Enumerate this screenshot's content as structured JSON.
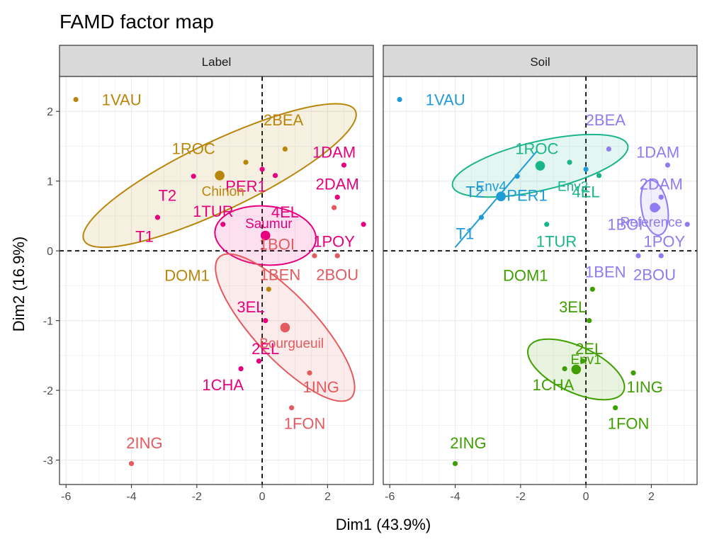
{
  "chart_data": {
    "type": "scatter",
    "title": "FAMD factor map",
    "xlabel": "Dim1 (43.9%)",
    "ylabel": "Dim2 (16.9%)",
    "xlim": [
      -6.2,
      3.4
    ],
    "ylim": [
      -3.35,
      2.5
    ],
    "xticks": [
      -6,
      -4,
      -2,
      0,
      2
    ],
    "yticks": [
      -3,
      -2,
      -1,
      0,
      1,
      2
    ],
    "grid": true,
    "reference_lines": {
      "x": 0,
      "y": 0,
      "style": "dashed"
    },
    "individuals": [
      {
        "name": "1VAU",
        "x": -5.7,
        "y": 2.17,
        "label": "Chinon",
        "soil": "Env4"
      },
      {
        "name": "1ROC",
        "x": -0.5,
        "y": 1.27,
        "label": "Chinon",
        "soil": "Env2"
      },
      {
        "name": "2BEA",
        "x": 0.7,
        "y": 1.46,
        "label": "Chinon",
        "soil": "Reference"
      },
      {
        "name": "DOM1",
        "x": 0.2,
        "y": -0.55,
        "label": "Chinon",
        "soil": "Env1"
      },
      {
        "name": "T1",
        "x": -3.2,
        "y": 0.48,
        "label": "Saumur",
        "soil": "Env4"
      },
      {
        "name": "T2",
        "x": -2.1,
        "y": 1.07,
        "label": "Saumur",
        "soil": "Env4"
      },
      {
        "name": "PER1",
        "x": 0.0,
        "y": 1.17,
        "label": "Saumur",
        "soil": "Env4"
      },
      {
        "name": "4EL",
        "x": 0.4,
        "y": 1.08,
        "label": "Saumur",
        "soil": "Env2"
      },
      {
        "name": "1DAM",
        "x": 2.5,
        "y": 1.23,
        "label": "Saumur",
        "soil": "Reference"
      },
      {
        "name": "2DAM",
        "x": 2.3,
        "y": 0.77,
        "label": "Saumur",
        "soil": "Reference"
      },
      {
        "name": "1TUR",
        "x": -1.2,
        "y": 0.38,
        "label": "Saumur",
        "soil": "Env2"
      },
      {
        "name": "1POY",
        "x": 3.1,
        "y": 0.38,
        "label": "Saumur",
        "soil": "Reference"
      },
      {
        "name": "3EL",
        "x": 0.1,
        "y": -1.0,
        "label": "Saumur",
        "soil": "Env1"
      },
      {
        "name": "2EL",
        "x": -0.1,
        "y": -1.58,
        "label": "Saumur",
        "soil": "Env1"
      },
      {
        "name": "1CHA",
        "x": -0.65,
        "y": -1.69,
        "label": "Saumur",
        "soil": "Env1"
      },
      {
        "name": "1BOI",
        "x": 2.2,
        "y": 0.62,
        "label": "Bourgueuil",
        "soil": "Reference"
      },
      {
        "name": "1BEN",
        "x": 1.6,
        "y": -0.07,
        "label": "Bourgueuil",
        "soil": "Reference"
      },
      {
        "name": "2BOU",
        "x": 2.3,
        "y": -0.07,
        "label": "Bourgueuil",
        "soil": "Reference"
      },
      {
        "name": "1ING",
        "x": 1.45,
        "y": -1.75,
        "label": "Bourgueuil",
        "soil": "Env1"
      },
      {
        "name": "1FON",
        "x": 0.9,
        "y": -2.25,
        "label": "Bourgueuil",
        "soil": "Env1"
      },
      {
        "name": "2ING",
        "x": -4.0,
        "y": -3.05,
        "label": "Bourgueuil",
        "soil": "Env1"
      }
    ],
    "panels": [
      {
        "strip": "Label",
        "labels": [
          {
            "text": "1VAU",
            "x": -4.3,
            "y": 2.17,
            "group": "Chinon"
          },
          {
            "text": "1ROC",
            "x": -2.1,
            "y": 1.47,
            "group": "Chinon"
          },
          {
            "text": "2BEA",
            "x": 0.65,
            "y": 1.88,
            "group": "Chinon"
          },
          {
            "text": "DOM1",
            "x": -2.3,
            "y": -0.35,
            "group": "Chinon"
          },
          {
            "text": "T1",
            "x": -3.6,
            "y": 0.21,
            "group": "Saumur"
          },
          {
            "text": "T2",
            "x": -2.9,
            "y": 0.8,
            "group": "Saumur"
          },
          {
            "text": "PER1",
            "x": -0.5,
            "y": 0.93,
            "group": "Saumur"
          },
          {
            "text": "4EL",
            "x": 0.7,
            "y": 0.56,
            "group": "Saumur"
          },
          {
            "text": "1DAM",
            "x": 2.2,
            "y": 1.42,
            "group": "Saumur"
          },
          {
            "text": "2DAM",
            "x": 2.3,
            "y": 0.96,
            "group": "Saumur"
          },
          {
            "text": "1TUR",
            "x": -1.5,
            "y": 0.57,
            "group": "Saumur"
          },
          {
            "text": "1POY",
            "x": 2.2,
            "y": 0.14,
            "group": "Saumur"
          },
          {
            "text": "3EL",
            "x": -0.35,
            "y": -0.8,
            "group": "Saumur"
          },
          {
            "text": "2EL",
            "x": 0.1,
            "y": -1.4,
            "group": "Saumur"
          },
          {
            "text": "1CHA",
            "x": -1.2,
            "y": -1.92,
            "group": "Saumur"
          },
          {
            "text": "1BOI",
            "x": 0.45,
            "y": 0.1,
            "group": "Bourgueuil"
          },
          {
            "text": "1BEN",
            "x": 0.55,
            "y": -0.34,
            "group": "Bourgueuil"
          },
          {
            "text": "2BOU",
            "x": 2.3,
            "y": -0.34,
            "group": "Bourgueuil"
          },
          {
            "text": "1ING",
            "x": 1.8,
            "y": -1.95,
            "group": "Bourgueuil"
          },
          {
            "text": "1FON",
            "x": 1.3,
            "y": -2.47,
            "group": "Bourgueuil"
          },
          {
            "text": "2ING",
            "x": -3.6,
            "y": -2.75,
            "group": "Bourgueuil"
          }
        ],
        "groups": [
          {
            "name": "Chinon",
            "color": "#B8860B",
            "center": [
              -1.3,
              1.08
            ],
            "ellipse": {
              "rx": 4.6,
              "ry": 1.05,
              "angle": -25.5
            }
          },
          {
            "name": "Saumur",
            "color": "#E6007E",
            "center": [
              0.1,
              0.22
            ],
            "ellipse": {
              "rx": 1.55,
              "ry": 0.9,
              "angle": 5
            }
          },
          {
            "name": "Bourgueuil",
            "color": "#E55A5E",
            "center": [
              0.7,
              -1.1
            ],
            "ellipse": {
              "rx": 2.95,
              "ry": 0.95,
              "angle": 47
            }
          }
        ],
        "centroid_labels": [
          {
            "text": "Chinon",
            "x": -1.2,
            "y": 0.86,
            "group": "Chinon"
          },
          {
            "text": "Saumur",
            "x": 0.2,
            "y": 0.4,
            "group": "Saumur"
          },
          {
            "text": "Bourgueuil",
            "x": 0.9,
            "y": -1.32,
            "group": "Bourgueuil"
          }
        ]
      },
      {
        "strip": "Soil",
        "labels": [
          {
            "text": "1VAU",
            "x": -4.3,
            "y": 2.17,
            "group": "Env4"
          },
          {
            "text": "2BEA",
            "x": 0.6,
            "y": 1.88,
            "group": "Reference"
          },
          {
            "text": "1ROC",
            "x": -1.5,
            "y": 1.47,
            "group": "Env2"
          },
          {
            "text": "1DAM",
            "x": 2.2,
            "y": 1.42,
            "group": "Reference"
          },
          {
            "text": "2DAM",
            "x": 2.3,
            "y": 0.96,
            "group": "Reference"
          },
          {
            "text": "PER1",
            "x": -1.8,
            "y": 0.8,
            "group": "Env4"
          },
          {
            "text": "T2",
            "x": -3.4,
            "y": 0.85,
            "group": "Env4"
          },
          {
            "text": "T1",
            "x": -3.7,
            "y": 0.25,
            "group": "Env4"
          },
          {
            "text": "4EL",
            "x": 0.0,
            "y": 0.85,
            "group": "Env2"
          },
          {
            "text": "1TUR",
            "x": -0.9,
            "y": 0.14,
            "group": "Env2"
          },
          {
            "text": "1BOI",
            "x": 1.2,
            "y": 0.38,
            "group": "Reference"
          },
          {
            "text": "1POY",
            "x": 2.4,
            "y": 0.14,
            "group": "Reference"
          },
          {
            "text": "2BOU",
            "x": 2.1,
            "y": -0.34,
            "group": "Reference"
          },
          {
            "text": "1BEN",
            "x": 0.6,
            "y": -0.3,
            "group": "Reference"
          },
          {
            "text": "DOM1",
            "x": -1.85,
            "y": -0.35,
            "group": "Env1"
          },
          {
            "text": "3EL",
            "x": -0.4,
            "y": -0.8,
            "group": "Env1"
          },
          {
            "text": "2EL",
            "x": 0.1,
            "y": -1.4,
            "group": "Env1"
          },
          {
            "text": "1CHA",
            "x": -1.0,
            "y": -1.92,
            "group": "Env1"
          },
          {
            "text": "1ING",
            "x": 1.8,
            "y": -1.95,
            "group": "Env1"
          },
          {
            "text": "1FON",
            "x": 1.3,
            "y": -2.47,
            "group": "Env1"
          },
          {
            "text": "2ING",
            "x": -3.6,
            "y": -2.75,
            "group": "Env1"
          }
        ],
        "groups": [
          {
            "name": "Env1",
            "color": "#3F9F00",
            "center": [
              -0.3,
              -1.7
            ],
            "ellipse": {
              "rx": 1.6,
              "ry": 0.7,
              "angle": 25
            }
          },
          {
            "name": "Env2",
            "color": "#1AB58A",
            "center": [
              -1.4,
              1.22
            ],
            "ellipse": {
              "rx": 2.75,
              "ry": 0.75,
              "angle": -13
            }
          },
          {
            "name": "Env4",
            "color": "#1E9BD7",
            "center": [
              -2.6,
              0.78
            ],
            "line": [
              [
                -4.0,
                0.05
              ],
              [
                -1.5,
                1.43
              ]
            ]
          },
          {
            "name": "Reference",
            "color": "#8F7BF2",
            "center": [
              2.1,
              0.62
            ],
            "ellipse": {
              "rx": 0.85,
              "ry": 0.4,
              "angle": 80
            }
          }
        ],
        "centroid_labels": [
          {
            "text": "Env4",
            "x": -2.9,
            "y": 0.93,
            "group": "Env4"
          },
          {
            "text": "Env2",
            "x": -0.4,
            "y": 0.93,
            "group": "Env2"
          },
          {
            "text": "Reference",
            "x": 2.0,
            "y": 0.42,
            "group": "Reference"
          },
          {
            "text": "Env1",
            "x": 0.0,
            "y": -1.55,
            "group": "Env1"
          }
        ]
      }
    ]
  }
}
